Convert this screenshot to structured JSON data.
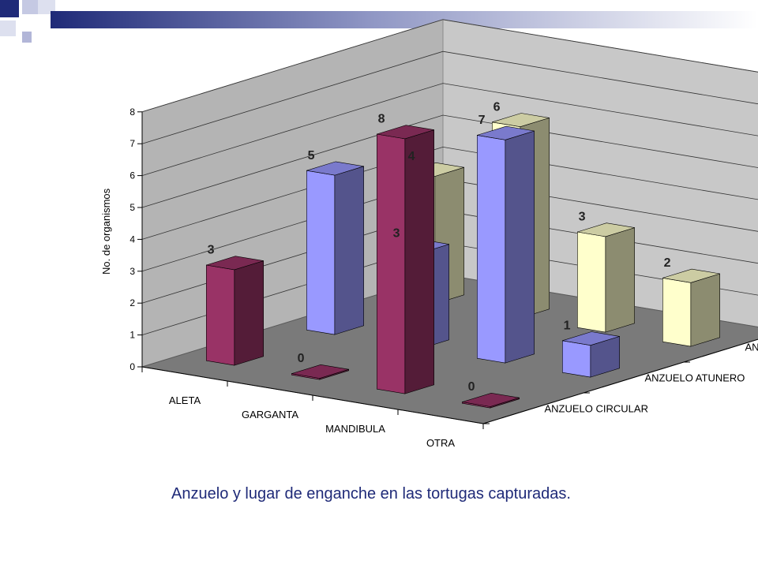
{
  "slide": {
    "caption": "Anzuelo y lugar de enganche en las tortugas capturadas."
  },
  "colors": {
    "accent": "#1f2a78",
    "wall": "#c0c0c0",
    "floor": "#808080"
  },
  "chart_data": {
    "type": "bar",
    "style": "3d-clustered",
    "ylabel": "No. de organismos",
    "ylim": [
      0,
      8
    ],
    "yticks": [
      0,
      1,
      2,
      3,
      4,
      5,
      6,
      7,
      8
    ],
    "grid": true,
    "categories": [
      "ALETA",
      "GARGANTA",
      "MANDIBULA",
      "OTRA"
    ],
    "series": [
      {
        "name": "ANZUELO CIRCULAR",
        "color": "#993366",
        "values": [
          3,
          0,
          8,
          0
        ]
      },
      {
        "name": "ANZUELO ATUNERO",
        "color": "#9999ff",
        "values": [
          5,
          3,
          7,
          1
        ]
      },
      {
        "name": "ANZUELO RECTO",
        "color": "#ffffcc",
        "values": [
          4,
          6,
          3,
          2
        ]
      }
    ]
  }
}
